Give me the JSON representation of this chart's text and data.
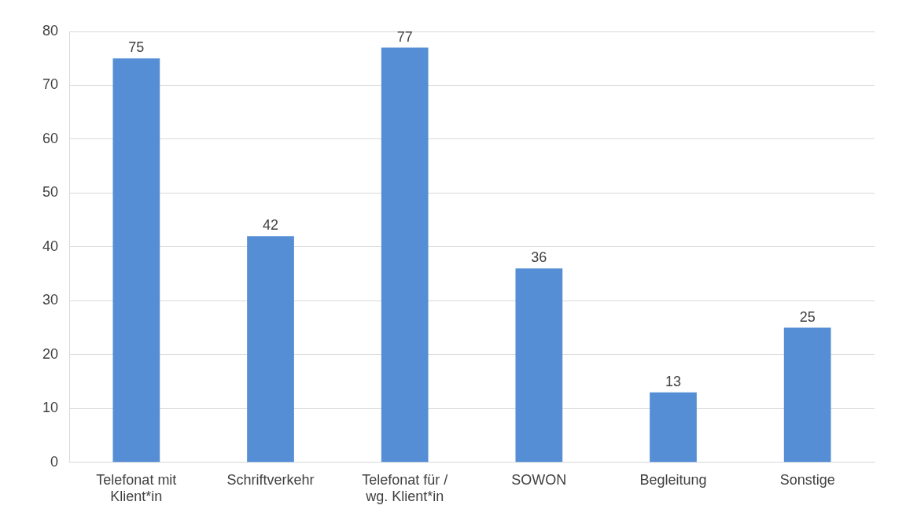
{
  "chart_data": {
    "type": "bar",
    "categories": [
      "Telefonat mit Klient*in",
      "Schriftverkehr",
      "Telefonat für / wg. Klient*in",
      "SOWON",
      "Begleitung",
      "Sonstige"
    ],
    "values": [
      75,
      42,
      77,
      36,
      13,
      25
    ],
    "color": "#558ed5",
    "ylim": [
      0,
      80
    ],
    "yticks": [
      0,
      10,
      20,
      30,
      40,
      50,
      60,
      70,
      80
    ],
    "grid": "y",
    "data_labels": true,
    "legend": false
  }
}
